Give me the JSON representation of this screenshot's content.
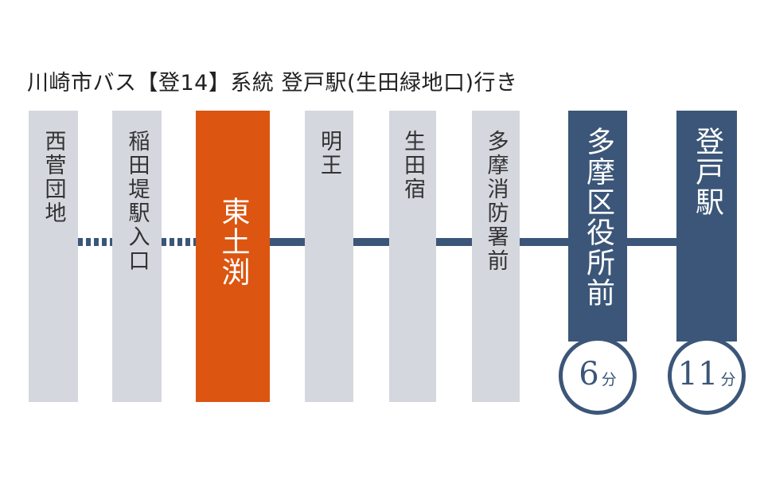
{
  "title": "川崎市バス【登14】系統 登戸駅(生田緑地口)行き",
  "stops": [
    {
      "name": "西菅団地",
      "type": "normal"
    },
    {
      "name": "稲田堤駅入口",
      "type": "normal"
    },
    {
      "name": "東土渕",
      "type": "current"
    },
    {
      "name": "明王",
      "type": "normal"
    },
    {
      "name": "生田宿",
      "type": "normal"
    },
    {
      "name": "多摩消防署前",
      "type": "normal"
    },
    {
      "name": "多摩区役所前",
      "type": "major",
      "time": "6",
      "time_unit": "分"
    },
    {
      "name": "登戸駅",
      "type": "major",
      "time": "11",
      "time_unit": "分"
    }
  ],
  "colors": {
    "current": "#dc5511",
    "major": "#3b5678",
    "normal": "#d5d7df",
    "line": "#3b5678"
  }
}
